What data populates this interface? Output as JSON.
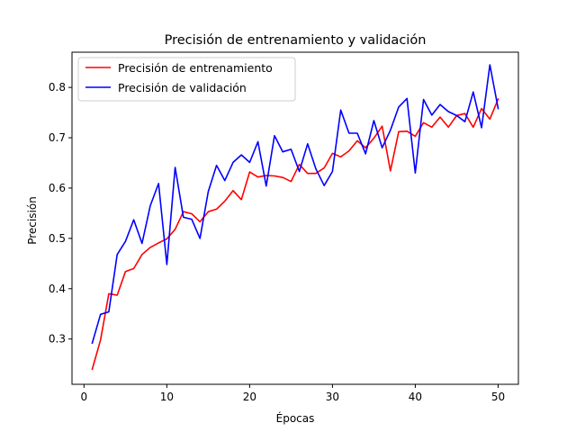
{
  "chart_data": {
    "type": "line",
    "title": "Precisión de entrenamiento y validación",
    "xlabel": "Épocas",
    "ylabel": "Precisión",
    "xlim": [
      -1.45,
      52.45
    ],
    "ylim": [
      0.21,
      0.87
    ],
    "xticks": [
      0,
      10,
      20,
      30,
      40,
      50
    ],
    "yticks": [
      0.3,
      0.4,
      0.5,
      0.6,
      0.7,
      0.8
    ],
    "ytick_labels": [
      "0.3",
      "0.4",
      "0.5",
      "0.6",
      "0.7",
      "0.8"
    ],
    "legend_position": "top-left",
    "grid": false,
    "x": [
      1,
      2,
      3,
      4,
      5,
      6,
      7,
      8,
      9,
      10,
      11,
      12,
      13,
      14,
      15,
      16,
      17,
      18,
      19,
      20,
      21,
      22,
      23,
      24,
      25,
      26,
      27,
      28,
      29,
      30,
      31,
      32,
      33,
      34,
      35,
      36,
      37,
      38,
      39,
      40,
      41,
      42,
      43,
      44,
      45,
      46,
      47,
      48,
      49,
      50
    ],
    "series": [
      {
        "name": "Precisión de entrenamiento",
        "color": "#ff0000",
        "values": [
          0.24,
          0.298,
          0.39,
          0.387,
          0.434,
          0.44,
          0.468,
          0.482,
          0.491,
          0.499,
          0.518,
          0.553,
          0.549,
          0.533,
          0.553,
          0.558,
          0.574,
          0.595,
          0.577,
          0.632,
          0.622,
          0.625,
          0.624,
          0.621,
          0.613,
          0.647,
          0.629,
          0.629,
          0.64,
          0.669,
          0.662,
          0.674,
          0.694,
          0.68,
          0.699,
          0.723,
          0.634,
          0.712,
          0.713,
          0.703,
          0.73,
          0.721,
          0.741,
          0.721,
          0.744,
          0.748,
          0.721,
          0.758,
          0.737,
          0.777
        ]
      },
      {
        "name": "Precisión de validación",
        "color": "#0000ff",
        "values": [
          0.292,
          0.349,
          0.354,
          0.468,
          0.494,
          0.537,
          0.49,
          0.565,
          0.609,
          0.448,
          0.641,
          0.542,
          0.538,
          0.5,
          0.593,
          0.645,
          0.615,
          0.651,
          0.666,
          0.651,
          0.692,
          0.604,
          0.704,
          0.672,
          0.677,
          0.633,
          0.688,
          0.638,
          0.605,
          0.633,
          0.755,
          0.709,
          0.709,
          0.668,
          0.734,
          0.68,
          0.715,
          0.761,
          0.778,
          0.63,
          0.776,
          0.745,
          0.766,
          0.752,
          0.744,
          0.732,
          0.791,
          0.72,
          0.845,
          0.758
        ]
      }
    ]
  }
}
